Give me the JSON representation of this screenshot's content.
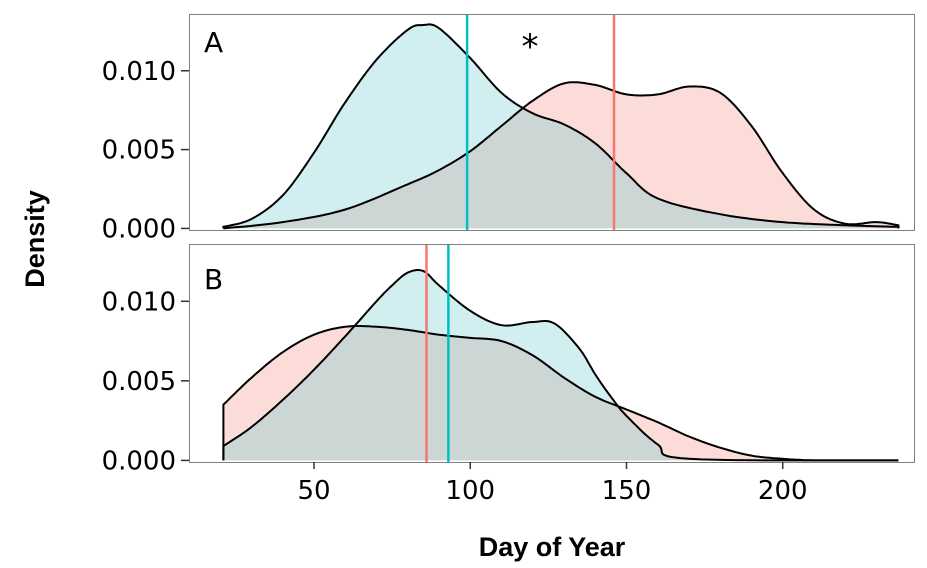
{
  "chart_data": {
    "type": "area",
    "xlabel": "Day of Year",
    "ylabel": "Density",
    "xlim": [
      10,
      242
    ],
    "x_ticks": [
      50,
      100,
      150,
      200
    ],
    "x_tick_labels": [
      "50",
      "100",
      "150",
      "200"
    ],
    "y_ticks": [
      0.0,
      0.005,
      0.01
    ],
    "y_tick_labels": [
      "0.000",
      "0.005",
      "0.010"
    ],
    "colors": {
      "red_fill": "#fcdcd9",
      "cyan_fill": "#d1eef0",
      "overlap_fill": "#ccd6d5",
      "red_line": "#f8766d",
      "cyan_line": "#00bfc4",
      "curve": "#000000"
    },
    "panels": [
      {
        "label": "A",
        "annotation": "*",
        "ylim": [
          -0.0001,
          0.0136
        ],
        "series": [
          {
            "name": "red",
            "x": [
              21,
              40,
              60,
              80,
              90,
              100,
              110,
              120,
              130,
              140,
              150,
              160,
              170,
              180,
              190,
              200,
              210,
              220,
              230,
              237
            ],
            "y": [
              0.0,
              0.0004,
              0.0012,
              0.0028,
              0.0037,
              0.0049,
              0.0065,
              0.0081,
              0.0092,
              0.0091,
              0.0085,
              0.0085,
              0.009,
              0.0086,
              0.0065,
              0.0035,
              0.0012,
              0.0003,
              0.0004,
              0.0002
            ]
          },
          {
            "name": "cyan",
            "x": [
              21,
              30,
              40,
              50,
              60,
              70,
              80,
              85,
              90,
              100,
              110,
              120,
              130,
              140,
              150,
              160,
              180,
              200,
              220,
              237
            ],
            "y": [
              0.0001,
              0.0006,
              0.0021,
              0.0048,
              0.008,
              0.0107,
              0.0126,
              0.0129,
              0.0127,
              0.0108,
              0.0086,
              0.0073,
              0.0066,
              0.0054,
              0.0035,
              0.0019,
              0.0009,
              0.0004,
              0.0002,
              0.0001
            ]
          }
        ],
        "vlines": [
          {
            "x": 99,
            "color": "cyan"
          },
          {
            "x": 146,
            "color": "red"
          }
        ]
      },
      {
        "label": "B",
        "annotation": "",
        "ylim": [
          -0.0001,
          0.0136
        ],
        "series": [
          {
            "name": "red",
            "x": [
              21,
              30,
              40,
              50,
              60,
              70,
              80,
              90,
              100,
              110,
              120,
              130,
              140,
              150,
              160,
              170,
              180,
              190,
              200,
              210,
              220,
              237
            ],
            "y": [
              0.0035,
              0.0052,
              0.0068,
              0.0079,
              0.0084,
              0.0084,
              0.0082,
              0.0079,
              0.0077,
              0.0075,
              0.0066,
              0.0052,
              0.004,
              0.0032,
              0.0024,
              0.0015,
              0.0008,
              0.0003,
              0.0001,
              0.0,
              0.0,
              0.0
            ]
          },
          {
            "name": "cyan",
            "x": [
              21,
              30,
              40,
              50,
              60,
              70,
              75,
              80,
              85,
              90,
              100,
              110,
              120,
              127,
              135,
              140,
              145,
              150,
              160,
              170,
              237
            ],
            "y": [
              0.0009,
              0.0021,
              0.0038,
              0.0057,
              0.0078,
              0.01,
              0.011,
              0.0118,
              0.0119,
              0.011,
              0.0094,
              0.0085,
              0.0087,
              0.0086,
              0.007,
              0.0054,
              0.004,
              0.0028,
              0.001,
              0.0001,
              0.0
            ]
          }
        ],
        "vlines": [
          {
            "x": 86,
            "color": "red"
          },
          {
            "x": 93,
            "color": "cyan"
          }
        ]
      }
    ]
  }
}
